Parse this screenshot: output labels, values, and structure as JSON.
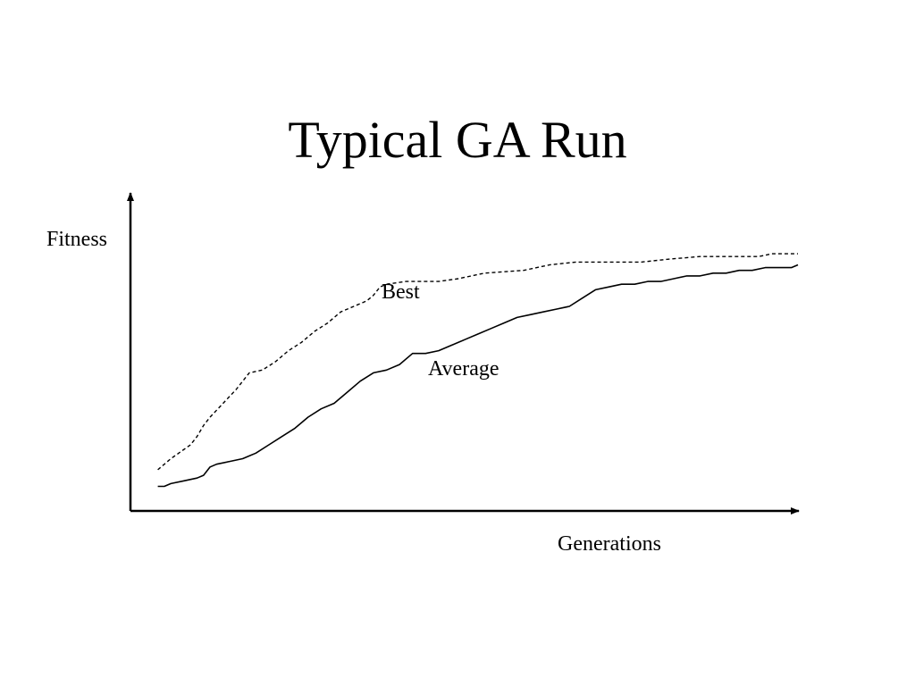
{
  "slide": {
    "title": "Typical GA Run"
  },
  "chart_data": {
    "type": "line",
    "title": "Typical GA Run",
    "xlabel": "Generations",
    "ylabel": "Fitness",
    "ticks": "none",
    "grid": false,
    "legend": "none",
    "xlim": [
      0,
      100
    ],
    "ylim": [
      0,
      100
    ],
    "colors": {
      "line": "#000000",
      "axis": "#000000"
    },
    "series": [
      {
        "name": "Best",
        "style": "dashed",
        "x": [
          2,
          4,
          7,
          8,
          9,
          10,
          12,
          14,
          16,
          18,
          20,
          22,
          24,
          26,
          28,
          30,
          32,
          34,
          35,
          36,
          37,
          40,
          43,
          45,
          48,
          52,
          58,
          62,
          66,
          70,
          72,
          76,
          80,
          85,
          88,
          92,
          94,
          96,
          100
        ],
        "y": [
          11,
          15,
          20,
          23,
          27,
          30,
          35,
          40,
          46,
          47,
          50,
          54,
          57,
          61,
          64,
          68,
          70,
          72,
          74,
          77,
          78,
          79,
          79,
          79,
          80,
          82,
          83,
          85,
          86,
          86,
          86,
          86,
          87,
          88,
          88,
          88,
          88,
          89,
          89
        ]
      },
      {
        "name": "Average",
        "style": "solid",
        "x": [
          2,
          3,
          4,
          6,
          8,
          9,
          10,
          11,
          13,
          15,
          17,
          19,
          21,
          23,
          25,
          27,
          29,
          31,
          33,
          35,
          37,
          39,
          41,
          43,
          45,
          47,
          49,
          51,
          53,
          55,
          57,
          59,
          61,
          63,
          65,
          67,
          69,
          71,
          73,
          75,
          77,
          79,
          81,
          83,
          85,
          87,
          89,
          91,
          93,
          95,
          97,
          99,
          100
        ],
        "y": [
          5,
          5,
          6,
          7,
          8,
          9,
          12,
          13,
          14,
          15,
          17,
          20,
          23,
          26,
          30,
          33,
          35,
          39,
          43,
          46,
          47,
          49,
          53,
          53,
          54,
          56,
          58,
          60,
          62,
          64,
          66,
          67,
          68,
          69,
          70,
          73,
          76,
          77,
          78,
          78,
          79,
          79,
          80,
          81,
          81,
          82,
          82,
          83,
          83,
          84,
          84,
          84,
          85
        ]
      }
    ]
  }
}
